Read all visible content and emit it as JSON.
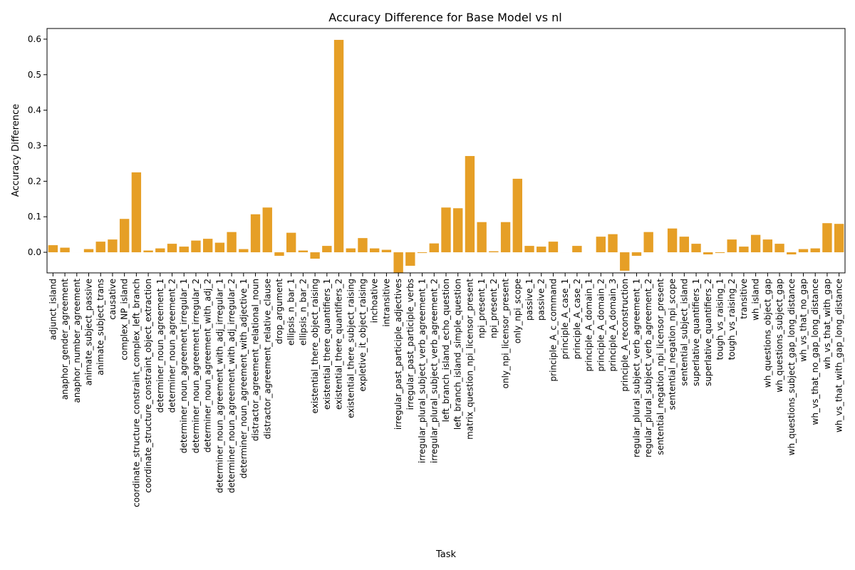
{
  "chart_data": {
    "type": "bar",
    "title": "Accuracy Difference for Base Model vs nl",
    "xlabel": "Task",
    "ylabel": "Accuracy Difference",
    "ylim": [
      -0.058,
      0.63
    ],
    "yticks": [
      "0.0",
      "0.1",
      "0.2",
      "0.3",
      "0.4",
      "0.5",
      "0.6"
    ],
    "bar_color": "#E69F26",
    "grid": false,
    "categories": [
      "adjunct_island",
      "anaphor_gender_agreement",
      "anaphor_number_agreement",
      "animate_subject_passive",
      "animate_subject_trans",
      "causative",
      "complex_NP_island",
      "coordinate_structure_constraint_complex_left_branch",
      "coordinate_structure_constraint_object_extraction",
      "determiner_noun_agreement_1",
      "determiner_noun_agreement_2",
      "determiner_noun_agreement_irregular_1",
      "determiner_noun_agreement_irregular_2",
      "determiner_noun_agreement_with_adj_2",
      "determiner_noun_agreement_with_adj_irregular_1",
      "determiner_noun_agreement_with_adj_irregular_2",
      "determiner_noun_agreement_with_adjective_1",
      "distractor_agreement_relational_noun",
      "distractor_agreement_relative_clause",
      "drop_argument",
      "ellipsis_n_bar_1",
      "ellipsis_n_bar_2",
      "existential_there_object_raising",
      "existential_there_quantifiers_1",
      "existential_there_quantifiers_2",
      "existential_there_subject_raising",
      "expletive_it_object_raising",
      "inchoative",
      "intransitive",
      "irregular_past_participle_adjectives",
      "irregular_past_participle_verbs",
      "irregular_plural_subject_verb_agreement_1",
      "irregular_plural_subject_verb_agreement_2",
      "left_branch_island_echo_question",
      "left_branch_island_simple_question",
      "matrix_question_npi_licensor_present",
      "npi_present_1",
      "npi_present_2",
      "only_npi_licensor_present",
      "only_npi_scope",
      "passive_1",
      "passive_2",
      "principle_A_c_command",
      "principle_A_case_1",
      "principle_A_case_2",
      "principle_A_domain_1",
      "principle_A_domain_2",
      "principle_A_domain_3",
      "principle_A_reconstruction",
      "regular_plural_subject_verb_agreement_1",
      "regular_plural_subject_verb_agreement_2",
      "sentential_negation_npi_licensor_present",
      "sentential_negation_npi_scope",
      "sentential_subject_island",
      "superlative_quantifiers_1",
      "superlative_quantifiers_2",
      "tough_vs_raising_1",
      "tough_vs_raising_2",
      "transitive",
      "wh_island",
      "wh_questions_object_gap",
      "wh_questions_subject_gap",
      "wh_questions_subject_gap_long_distance",
      "wh_vs_that_no_gap",
      "wh_vs_that_no_gap_long_distance",
      "wh_vs_that_with_gap",
      "wh_vs_that_with_gap_long_distance"
    ],
    "values": [
      0.02,
      0.013,
      0.0,
      0.009,
      0.03,
      0.036,
      0.094,
      0.225,
      0.005,
      0.011,
      0.024,
      0.016,
      0.033,
      0.038,
      0.027,
      0.057,
      0.009,
      0.107,
      0.126,
      -0.01,
      0.055,
      0.005,
      -0.018,
      0.018,
      0.598,
      0.011,
      0.04,
      0.011,
      0.007,
      -0.058,
      -0.038,
      -0.002,
      0.025,
      0.126,
      0.124,
      0.271,
      0.085,
      0.003,
      0.085,
      0.207,
      0.018,
      0.016,
      0.03,
      0.0,
      0.018,
      0.0,
      0.044,
      0.051,
      -0.052,
      -0.01,
      0.057,
      0.0,
      0.067,
      0.044,
      0.024,
      -0.006,
      -0.002,
      0.036,
      0.016,
      0.049,
      0.036,
      0.024,
      -0.006,
      0.009,
      0.011,
      0.082,
      0.08
    ]
  }
}
